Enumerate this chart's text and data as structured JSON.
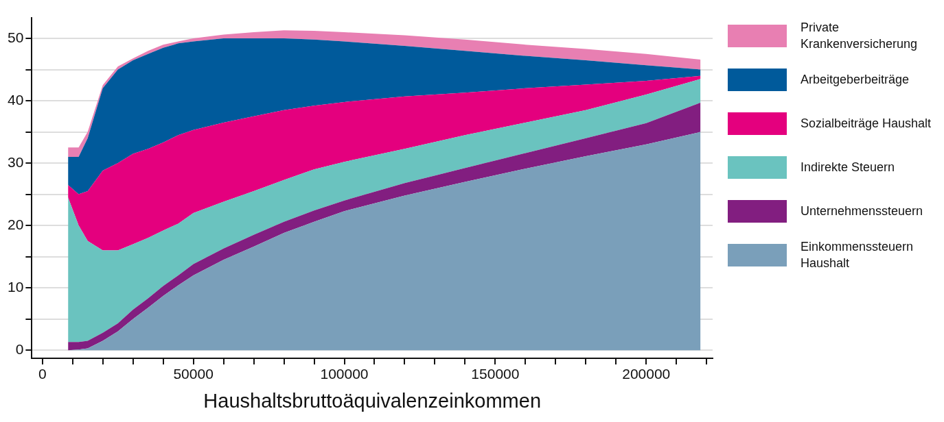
{
  "chart_data": {
    "type": "area",
    "stacked": true,
    "xlabel": "Haushaltsbruttoäquivalenzeinkommen",
    "x": [
      8500,
      12000,
      15000,
      20000,
      25000,
      30000,
      35000,
      40000,
      45000,
      50000,
      60000,
      70000,
      80000,
      90000,
      100000,
      120000,
      140000,
      160000,
      180000,
      200000,
      218000
    ],
    "series": [
      {
        "name": "Einkommenssteuern Haushalt",
        "color": "#7a9fba",
        "values": [
          0,
          0.1,
          0.3,
          1.5,
          3,
          5,
          6.8,
          8.7,
          10.4,
          12,
          14.5,
          16.6,
          18.8,
          20.6,
          22.3,
          24.8,
          27,
          29.1,
          31.1,
          33,
          35
        ]
      },
      {
        "name": "Unternehmenssteuern",
        "color": "#821e80",
        "values": [
          1.3,
          1.2,
          1.2,
          1.3,
          1.3,
          1.5,
          1.5,
          1.6,
          1.6,
          1.8,
          1.8,
          1.9,
          1.8,
          1.8,
          1.7,
          2.0,
          2.2,
          2.5,
          2.9,
          3.4,
          4.7
        ]
      },
      {
        "name": "Indirekte Steuern",
        "color": "#6ac3bf",
        "values": [
          23.2,
          18.7,
          16,
          13.2,
          11.7,
          10.5,
          9.7,
          8.9,
          8.3,
          8.2,
          7.5,
          7,
          6.7,
          6.6,
          6.2,
          5.5,
          5.3,
          4.9,
          4.5,
          4.6,
          3.8
        ]
      },
      {
        "name": "Sozialbeiträge Haushalt",
        "color": "#e4007e",
        "values": [
          2,
          5,
          8,
          12.8,
          14,
          14.5,
          14.3,
          14.1,
          14.2,
          13.3,
          12.7,
          12,
          11.2,
          10.2,
          9.6,
          8.4,
          6.8,
          5.5,
          4.1,
          2.2,
          0.5
        ]
      },
      {
        "name": "Arbeitgeberbeiträge",
        "color": "#005a9b",
        "values": [
          4.5,
          6,
          8.5,
          13.2,
          15,
          15,
          15.2,
          15.2,
          14.7,
          14.2,
          13.5,
          12.5,
          11.5,
          10.6,
          9.7,
          8.1,
          6.7,
          5.2,
          3.9,
          2.5,
          1
        ]
      },
      {
        "name": "Private Krankenversicherung",
        "color": "#e87fb2",
        "values": [
          1.5,
          1.5,
          1,
          0.5,
          0.5,
          0.3,
          0.5,
          0.5,
          0.3,
          0.5,
          0.6,
          1,
          1.3,
          1.4,
          1.5,
          1.7,
          1.8,
          1.8,
          1.8,
          1.8,
          1.6
        ]
      }
    ],
    "xlim": [
      -3500,
      222000
    ],
    "xticks": [
      0,
      {
        "value": 10000,
        "label": null
      },
      {
        "value": 20000,
        "label": null
      },
      {
        "value": 30000,
        "label": null
      },
      {
        "value": 40000,
        "label": null
      },
      50000,
      {
        "value": 60000,
        "label": null
      },
      {
        "value": 70000,
        "label": null
      },
      {
        "value": 80000,
        "label": null
      },
      {
        "value": 90000,
        "label": null
      },
      100000,
      {
        "value": 110000,
        "label": null
      },
      {
        "value": 120000,
        "label": null
      },
      {
        "value": 130000,
        "label": null
      },
      {
        "value": 140000,
        "label": null
      },
      150000,
      {
        "value": 160000,
        "label": null
      },
      {
        "value": 170000,
        "label": null
      },
      {
        "value": 180000,
        "label": null
      },
      {
        "value": 190000,
        "label": null
      },
      200000,
      {
        "value": 210000,
        "label": null
      },
      {
        "value": 220000,
        "label": null
      }
    ],
    "ylim": [
      -1.3,
      53.3
    ],
    "yticks": [
      0,
      {
        "value": 5,
        "label": null
      },
      10,
      {
        "value": 15,
        "label": null
      },
      20,
      {
        "value": 25,
        "label": null
      },
      30,
      {
        "value": 35,
        "label": null
      },
      40,
      {
        "value": 45,
        "label": null
      },
      50
    ],
    "grid": "y",
    "legend": "right",
    "marker": "none"
  }
}
